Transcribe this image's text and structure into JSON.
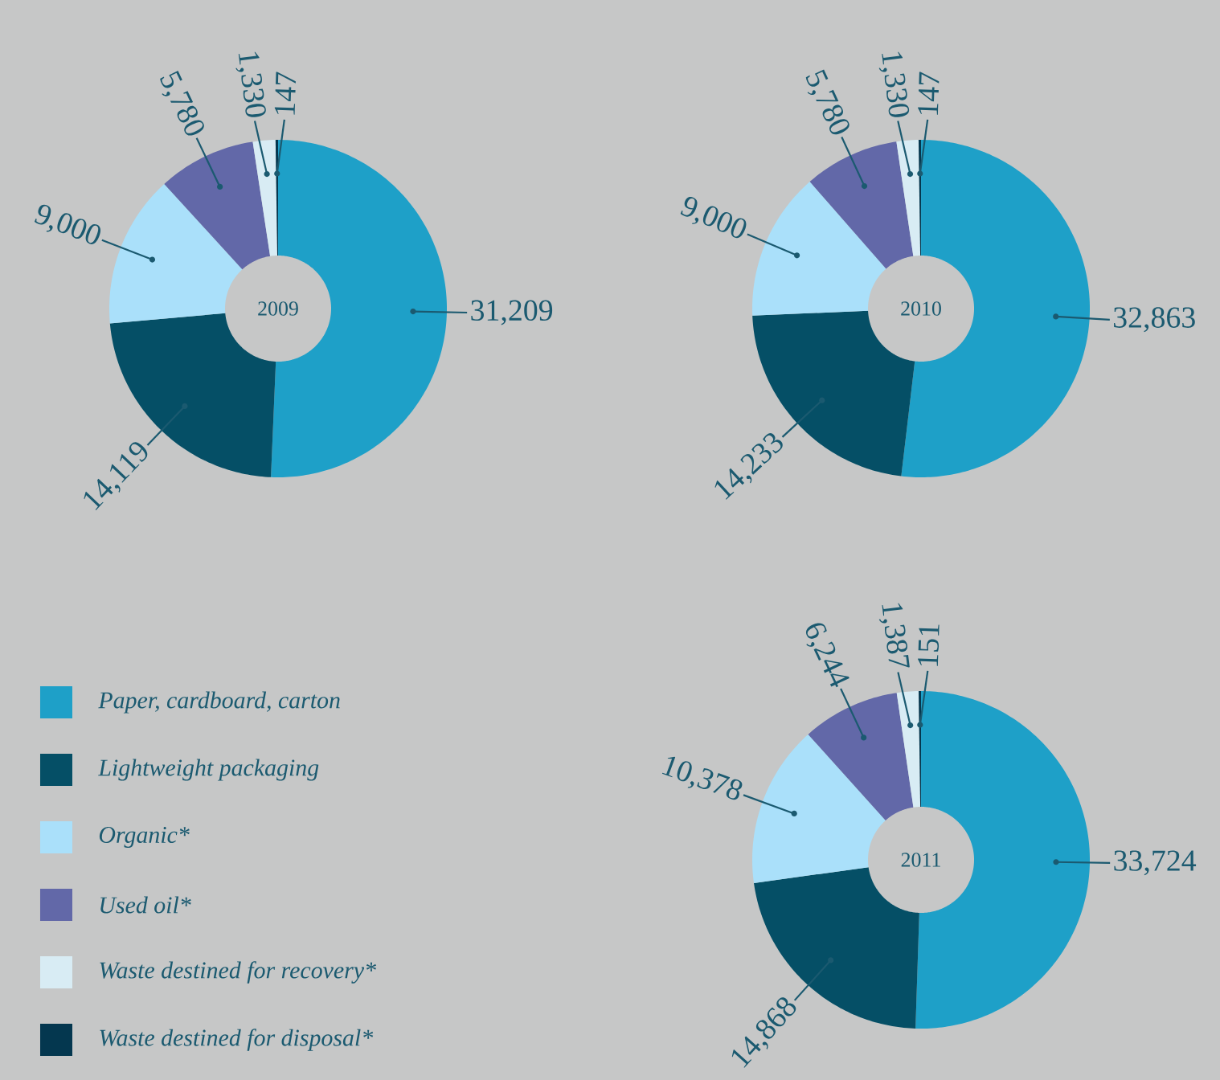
{
  "chart_data": [
    {
      "type": "donut",
      "title": "2009",
      "legend": false,
      "categories": [
        null,
        null,
        null,
        null,
        null,
        null
      ],
      "values": [
        31209,
        14119,
        9000,
        5780,
        1330,
        147
      ],
      "value_labels": [
        "31,209",
        "14,119",
        "9,000",
        "5,780",
        "1,330",
        "147"
      ],
      "colors": [
        "#1ea0c8",
        "#054f66",
        "#aae0fa",
        "#6268a8",
        "#d8ecf4",
        "#04374f"
      ]
    },
    {
      "type": "donut",
      "title": "2010",
      "legend": false,
      "categories": [
        null,
        null,
        null,
        null,
        null,
        null
      ],
      "values": [
        32863,
        14233,
        9000,
        5780,
        1330,
        147
      ],
      "value_labels": [
        "32,863",
        "14,233",
        "9,000",
        "5,780",
        "1,330",
        "147"
      ],
      "colors": [
        "#1ea0c8",
        "#054f66",
        "#aae0fa",
        "#6268a8",
        "#d8ecf4",
        "#04374f"
      ]
    },
    {
      "type": "donut",
      "title": "2011",
      "legend": "left",
      "categories": [
        "Paper, cardboard, carton",
        "Lightweight packaging",
        "Organic*",
        "Used oil*",
        "Waste destined for recovery*",
        "Waste destined for disposal*"
      ],
      "values": [
        33724,
        14868,
        10378,
        6244,
        1387,
        151
      ],
      "value_labels": [
        "33,724",
        "14,868",
        "10,378",
        "6,244",
        "1,387",
        "151"
      ],
      "colors": [
        "#1ea0c8",
        "#054f66",
        "#aae0fa",
        "#6268a8",
        "#d8ecf4",
        "#04374f"
      ]
    }
  ]
}
